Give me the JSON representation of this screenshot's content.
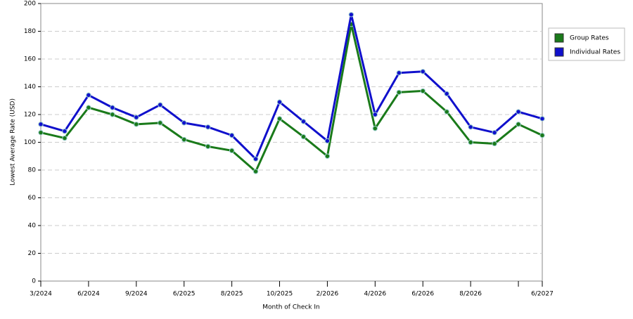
{
  "chart_data": {
    "type": "line",
    "x_label": "Month of Check In",
    "y_label": "Lowest Average Rate (USD)",
    "categories": [
      "3/2024",
      null,
      "6/2024",
      null,
      "9/2024",
      null,
      "6/2025",
      null,
      "8/2025",
      null,
      "10/2025",
      null,
      "2/2026",
      null,
      "4/2026",
      null,
      "6/2026",
      null,
      "8/2026",
      null,
      null,
      "6/2027"
    ],
    "series": [
      {
        "name": "Group Rates",
        "color": "#1a7a1a",
        "values": [
          107,
          103,
          125,
          120,
          113,
          114,
          102,
          97,
          94,
          79,
          117,
          104,
          90,
          185,
          110,
          136,
          137,
          122,
          100,
          99,
          113,
          105
        ]
      },
      {
        "name": "Individual Rates",
        "color": "#1010cc",
        "values": [
          113,
          108,
          134,
          125,
          118,
          127,
          114,
          111,
          105,
          88,
          129,
          115,
          101,
          192,
          120,
          150,
          151,
          135,
          111,
          107,
          122,
          117
        ]
      }
    ],
    "ylim": [
      0,
      200
    ],
    "yticks": [
      0,
      20,
      40,
      60,
      80,
      100,
      120,
      140,
      160,
      180,
      200
    ],
    "grid": true,
    "legend": "right"
  }
}
